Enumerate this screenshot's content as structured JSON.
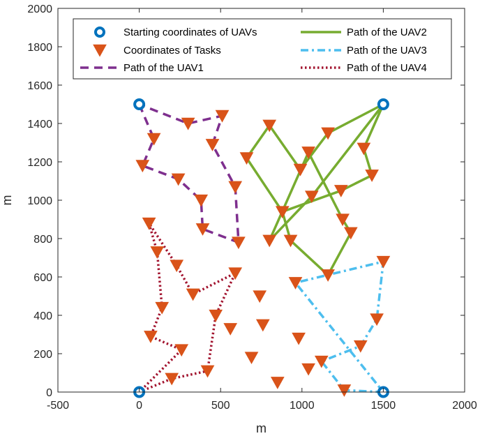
{
  "chart_data": {
    "type": "scatter",
    "title": "",
    "xlabel": "m",
    "ylabel": "m",
    "xlim": [
      -500,
      2000
    ],
    "ylim": [
      0,
      2000
    ],
    "xticks": [
      -500,
      0,
      500,
      1000,
      1500,
      2000
    ],
    "yticks": [
      0,
      200,
      400,
      600,
      800,
      1000,
      1200,
      1400,
      1600,
      1800,
      2000
    ],
    "grid": false,
    "legend_position": "top",
    "colors": {
      "start": "#0072BD",
      "task": "#D95319",
      "uav1": "#7E2F8E",
      "uav2": "#77AC30",
      "uav3": "#4DBEEE",
      "uav4": "#A2142F"
    },
    "legend": [
      {
        "key": "start",
        "label": "Starting coordinates of UAVs"
      },
      {
        "key": "task",
        "label": "Coordinates of Tasks"
      },
      {
        "key": "uav1",
        "label": "Path of the UAV1"
      },
      {
        "key": "uav2",
        "label": "Path of the UAV2"
      },
      {
        "key": "uav3",
        "label": "Path of the UAV3"
      },
      {
        "key": "uav4",
        "label": "Path of the UAV4"
      }
    ],
    "starts": [
      [
        0,
        1500
      ],
      [
        1500,
        1500
      ],
      [
        1500,
        0
      ],
      [
        0,
        0
      ]
    ],
    "paths": [
      {
        "key": "uav1",
        "name": "Path of the UAV1",
        "style": "dashed",
        "points": [
          [
            0,
            1500
          ],
          [
            90,
            1320
          ],
          [
            20,
            1180
          ],
          [
            240,
            1110
          ],
          [
            380,
            1000
          ],
          [
            390,
            850
          ],
          [
            610,
            780
          ],
          [
            590,
            1070
          ],
          [
            450,
            1290
          ],
          [
            510,
            1440
          ],
          [
            300,
            1400
          ],
          [
            0,
            1500
          ]
        ]
      },
      {
        "key": "uav2",
        "name": "Path of the UAV2",
        "style": "solid",
        "points": [
          [
            1500,
            1500
          ],
          [
            1160,
            1350
          ],
          [
            990,
            1160
          ],
          [
            800,
            1390
          ],
          [
            660,
            1220
          ],
          [
            880,
            940
          ],
          [
            1240,
            1050
          ],
          [
            1430,
            1130
          ],
          [
            1380,
            1270
          ],
          [
            1500,
            1500
          ],
          [
            1060,
            1020
          ],
          [
            800,
            790
          ],
          [
            1040,
            1250
          ],
          [
            1250,
            900
          ],
          [
            1300,
            830
          ],
          [
            1160,
            610
          ],
          [
            930,
            790
          ],
          [
            880,
            940
          ]
        ]
      },
      {
        "key": "uav3",
        "name": "Path of the UAV3",
        "style": "dashdot",
        "points": [
          [
            1500,
            0
          ],
          [
            1260,
            10
          ],
          [
            1120,
            160
          ],
          [
            1360,
            240
          ],
          [
            1460,
            380
          ],
          [
            1500,
            680
          ],
          [
            960,
            570
          ],
          [
            1500,
            0
          ]
        ]
      },
      {
        "key": "uav4",
        "name": "Path of the UAV4",
        "style": "dotted",
        "points": [
          [
            0,
            0
          ],
          [
            200,
            70
          ],
          [
            420,
            110
          ],
          [
            470,
            400
          ],
          [
            590,
            620
          ],
          [
            330,
            510
          ],
          [
            230,
            660
          ],
          [
            60,
            880
          ],
          [
            110,
            730
          ],
          [
            140,
            440
          ],
          [
            70,
            290
          ],
          [
            260,
            220
          ],
          [
            0,
            0
          ]
        ]
      }
    ],
    "tasks": [
      [
        90,
        1320
      ],
      [
        20,
        1180
      ],
      [
        240,
        1110
      ],
      [
        380,
        1000
      ],
      [
        390,
        850
      ],
      [
        610,
        780
      ],
      [
        590,
        1070
      ],
      [
        450,
        1290
      ],
      [
        510,
        1440
      ],
      [
        300,
        1400
      ],
      [
        1160,
        1350
      ],
      [
        990,
        1160
      ],
      [
        800,
        1390
      ],
      [
        660,
        1220
      ],
      [
        880,
        940
      ],
      [
        1240,
        1050
      ],
      [
        1430,
        1130
      ],
      [
        1380,
        1270
      ],
      [
        1060,
        1020
      ],
      [
        800,
        790
      ],
      [
        1040,
        1250
      ],
      [
        1250,
        900
      ],
      [
        1300,
        830
      ],
      [
        1160,
        610
      ],
      [
        930,
        790
      ],
      [
        1260,
        10
      ],
      [
        1120,
        160
      ],
      [
        1360,
        240
      ],
      [
        1460,
        380
      ],
      [
        1500,
        680
      ],
      [
        960,
        570
      ],
      [
        60,
        880
      ],
      [
        110,
        730
      ],
      [
        140,
        440
      ],
      [
        70,
        290
      ],
      [
        200,
        70
      ],
      [
        420,
        110
      ],
      [
        470,
        400
      ],
      [
        590,
        620
      ],
      [
        330,
        510
      ],
      [
        230,
        660
      ],
      [
        260,
        220
      ],
      [
        740,
        500
      ],
      [
        760,
        350
      ],
      [
        560,
        330
      ],
      [
        690,
        180
      ],
      [
        850,
        50
      ],
      [
        980,
        280
      ],
      [
        1040,
        120
      ]
    ]
  }
}
